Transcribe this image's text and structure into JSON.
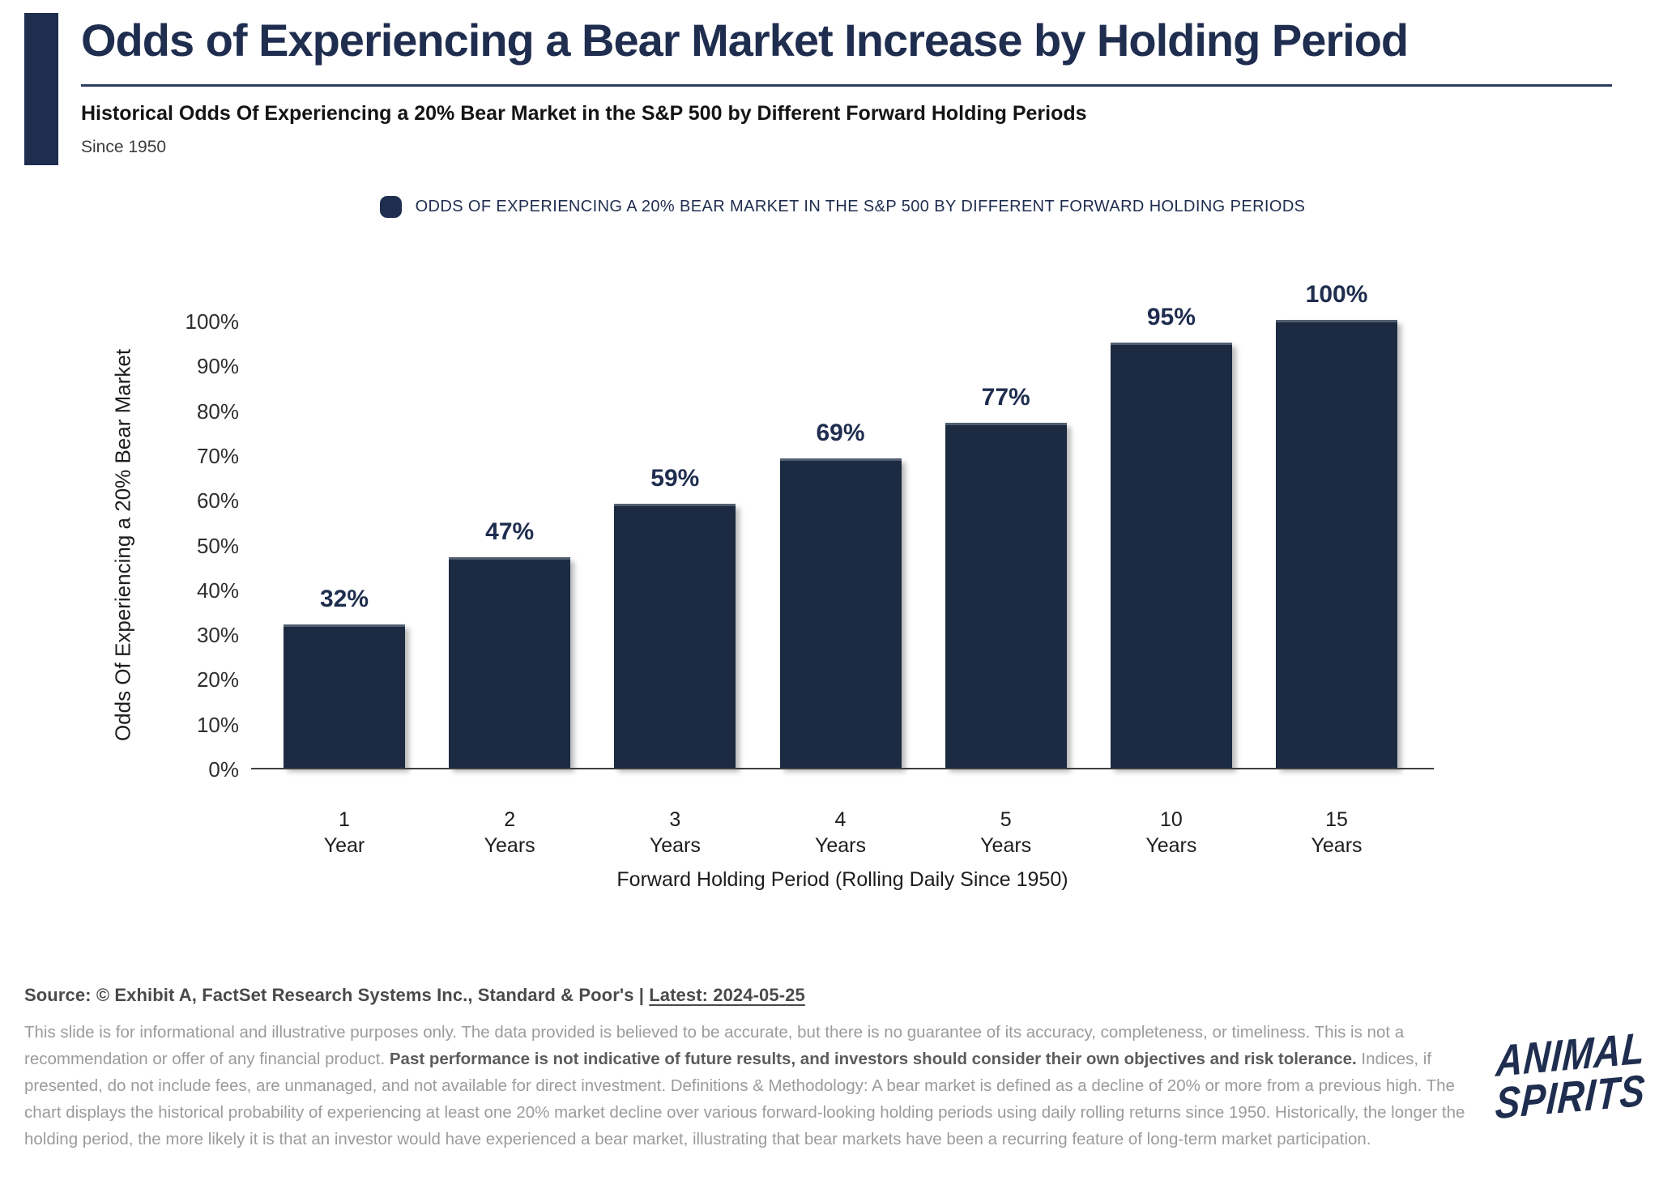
{
  "header": {
    "title": "Odds of Experiencing a Bear Market Increase by Holding Period",
    "subtitle": "Historical Odds Of Experiencing a 20% Bear Market in the S&P 500 by Different Forward Holding Periods",
    "since": "Since 1950"
  },
  "legend": {
    "label": "ODDS OF EXPERIENCING A 20% BEAR MARKET IN THE S&P 500 BY DIFFERENT FORWARD HOLDING PERIODS"
  },
  "chart_data": {
    "type": "bar",
    "title": "Odds of Experiencing a Bear Market Increase by Holding Period",
    "categories": [
      "1 Year",
      "2 Years",
      "3 Years",
      "4 Years",
      "5 Years",
      "10 Years",
      "15 Years"
    ],
    "categories_lines": [
      [
        "1",
        "Year"
      ],
      [
        "2",
        "Years"
      ],
      [
        "3",
        "Years"
      ],
      [
        "4",
        "Years"
      ],
      [
        "5",
        "Years"
      ],
      [
        "10",
        "Years"
      ],
      [
        "15",
        "Years"
      ]
    ],
    "values": [
      32,
      47,
      59,
      69,
      77,
      95,
      100
    ],
    "value_labels": [
      "32%",
      "47%",
      "59%",
      "69%",
      "77%",
      "95%",
      "100%"
    ],
    "xlabel": "Forward Holding Period (Rolling Daily Since 1950)",
    "ylabel": "Odds Of Experiencing a 20% Bear Market",
    "ylim": [
      0,
      100
    ],
    "ytick_labels": [
      "0%",
      "10%",
      "20%",
      "30%",
      "40%",
      "50%",
      "60%",
      "70%",
      "80%",
      "90%",
      "100%"
    ],
    "grid": false,
    "legend_position": "top",
    "bar_color": "#1c2a42"
  },
  "footer": {
    "source_prefix": "Source: © Exhibit A, FactSet Research Systems Inc., Standard & Poor's | ",
    "latest": "Latest: 2024-05-25",
    "disclaimer_part1": "This slide is for informational and illustrative purposes only. The data provided is believed to be accurate, but there is no guarantee of its accuracy, completeness, or timeliness. This is not a recommendation or offer of any financial product. ",
    "disclaimer_bold": "Past performance is not indicative of future results, and investors should consider their own objectives and risk tolerance.",
    "disclaimer_part2": " Indices, if presented, do not include fees, are unmanaged, and not available for direct investment. Definitions & Methodology: A bear market is defined as a decline of 20% or more from a previous high. The chart displays the historical probability of experiencing at least one 20% market decline over various forward-looking holding periods using daily rolling returns since 1950. Historically, the longer the holding period, the more likely it is that an investor would have experienced a bear market, illustrating that bear markets have been a recurring feature of long-term market participation.",
    "logo_line1": "ANIMAL",
    "logo_line2": "SPIRITS"
  },
  "colors": {
    "navy": "#1f2d4f",
    "bar": "#1c2a42",
    "axis_text": "#2e2e2e",
    "disclaimer_text": "#9b9b9b"
  }
}
